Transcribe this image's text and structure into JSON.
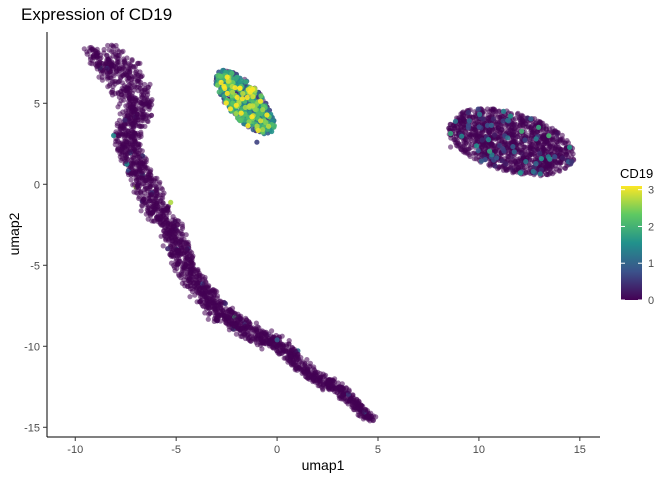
{
  "chart_data": {
    "type": "scatter",
    "title": "Expression of CD19",
    "xlabel": "umap1",
    "ylabel": "umap2",
    "xlim": [
      -11.4,
      16.0
    ],
    "ylim": [
      -15.6,
      9.4
    ],
    "x_ticks": [
      -10,
      -5,
      0,
      5,
      10,
      15
    ],
    "x_tick_labels": [
      "-10",
      "-5",
      "0",
      "5",
      "10",
      "15"
    ],
    "y_ticks": [
      -15,
      -10,
      -5,
      0,
      5
    ],
    "y_tick_labels": [
      "-15",
      "-10",
      "-5",
      "0",
      "5"
    ],
    "grid": false,
    "legend": {
      "title": "CD19",
      "position": "right",
      "min": 0,
      "max": 3.1,
      "ticks": [
        0,
        1,
        2,
        3
      ],
      "tick_labels": [
        "0",
        "1",
        "2",
        "3"
      ]
    },
    "colors": {
      "low": "#440154",
      "mid1": "#3b528b",
      "mid2": "#21918c",
      "mid3": "#5ec962",
      "high": "#fde725"
    },
    "clusters": [
      {
        "name": "",
        "shape": "path",
        "path": [
          [
            -9.1,
            7.5
          ],
          [
            -8.5,
            7.9
          ],
          [
            -7.9,
            7.6
          ],
          [
            -7.7,
            6.6
          ],
          [
            -7.1,
            5.6
          ],
          [
            -6.6,
            4.6
          ],
          [
            -7.3,
            4.0
          ],
          [
            -7.5,
            2.6
          ],
          [
            -7.1,
            1.6
          ],
          [
            -6.6,
            0.2
          ],
          [
            -5.9,
            -1.6
          ],
          [
            -5.1,
            -2.9
          ],
          [
            -4.6,
            -4.9
          ],
          [
            -3.9,
            -6.3
          ],
          [
            -2.9,
            -7.9
          ],
          [
            -2.0,
            -8.5
          ],
          [
            -1.0,
            -9.4
          ],
          [
            0.2,
            -9.9
          ],
          [
            1.5,
            -11.6
          ],
          [
            3.0,
            -12.6
          ],
          [
            4.2,
            -13.9
          ],
          [
            4.6,
            -14.5
          ]
        ],
        "width": [
          1.4,
          1.7,
          1.7,
          1.9,
          1.6,
          1.1,
          1.3,
          1.1,
          1.0,
          1.1,
          1.1,
          1.0,
          1.0,
          0.9,
          0.9,
          0.8,
          0.8,
          0.7,
          0.6,
          0.5,
          0.35,
          0.2
        ],
        "n": 2200,
        "expr_mean": 0.03,
        "expr_rate": 0.02
      },
      {
        "name": "",
        "shape": "ellipse",
        "center": [
          -1.6,
          5.1
        ],
        "radii": [
          0.9,
          2.3
        ],
        "rotation": 33,
        "n": 600,
        "expr_mean": 1.3,
        "expr_rate": 0.9
      },
      {
        "name": "",
        "shape": "ellipse",
        "center": [
          11.6,
          2.6
        ],
        "radii": [
          3.3,
          1.8
        ],
        "rotation": -22,
        "n": 1200,
        "expr_mean": 0.1,
        "expr_rate": 0.08
      },
      {
        "name": "",
        "shape": "points",
        "x": [
          4.6,
          0.0,
          -1.0,
          8.6,
          14.6
        ],
        "y": [
          -14.6,
          -9.6,
          2.6,
          2.3,
          1.4
        ],
        "v": [
          0,
          0.9,
          0.6,
          0,
          0.5
        ]
      }
    ]
  }
}
